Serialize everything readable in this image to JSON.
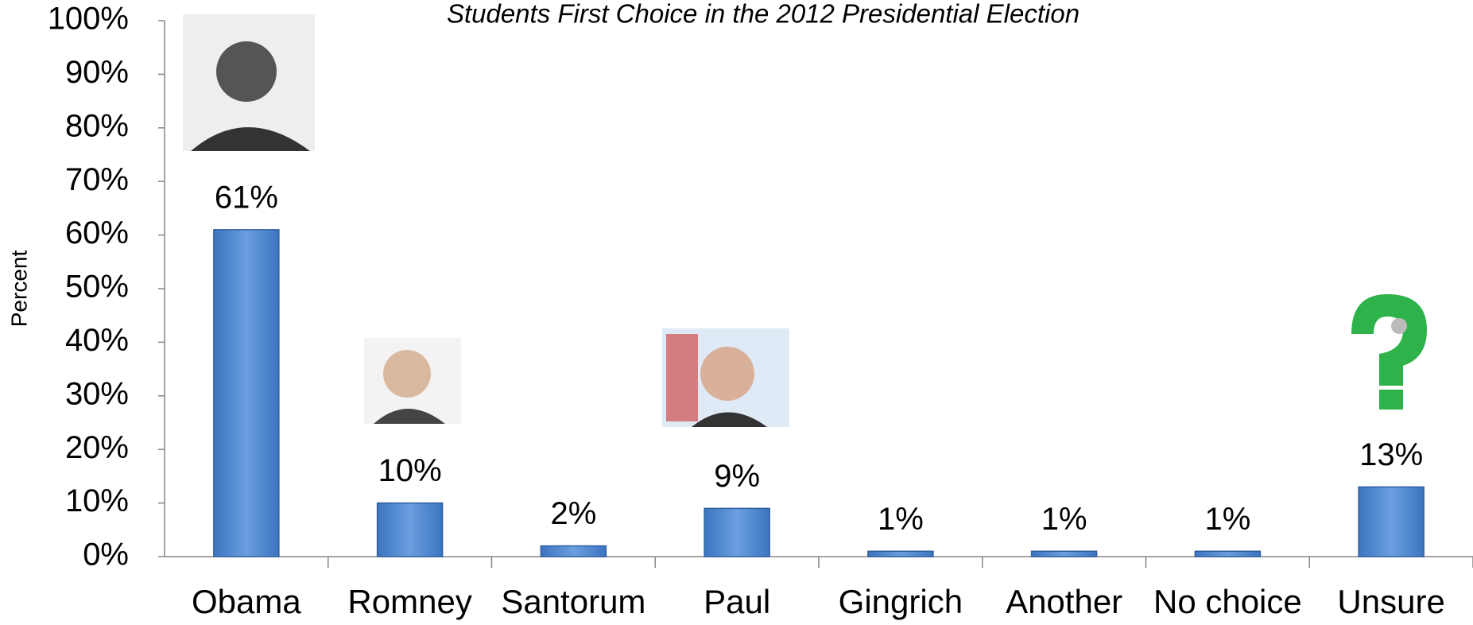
{
  "chart_data": {
    "type": "bar",
    "title": "Students First Choice in the 2012 Presidential Election",
    "y_label": "Percent",
    "categories": [
      "Obama",
      "Romney",
      "Santorum",
      "Paul",
      "Gingrich",
      "Another",
      "No choice",
      "Unsure"
    ],
    "values": [
      61,
      10,
      2,
      9,
      1,
      1,
      1,
      13
    ],
    "value_labels": [
      "61%",
      "10%",
      "2%",
      "9%",
      "1%",
      "1%",
      "1%",
      "13%"
    ],
    "color": "#558ed5",
    "ylim": [
      0,
      100
    ],
    "yticks": [
      {
        "value": 0,
        "label": "0%"
      },
      {
        "value": 10,
        "label": "10%"
      },
      {
        "value": 20,
        "label": "20%"
      },
      {
        "value": 30,
        "label": "30%"
      },
      {
        "value": 40,
        "label": "40%"
      },
      {
        "value": 50,
        "label": "50%"
      },
      {
        "value": 60,
        "label": "60%"
      },
      {
        "value": 70,
        "label": "70%"
      },
      {
        "value": 80,
        "label": "80%"
      },
      {
        "value": 90,
        "label": "90%"
      },
      {
        "value": 100,
        "label": "100%"
      }
    ],
    "grid": false
  }
}
